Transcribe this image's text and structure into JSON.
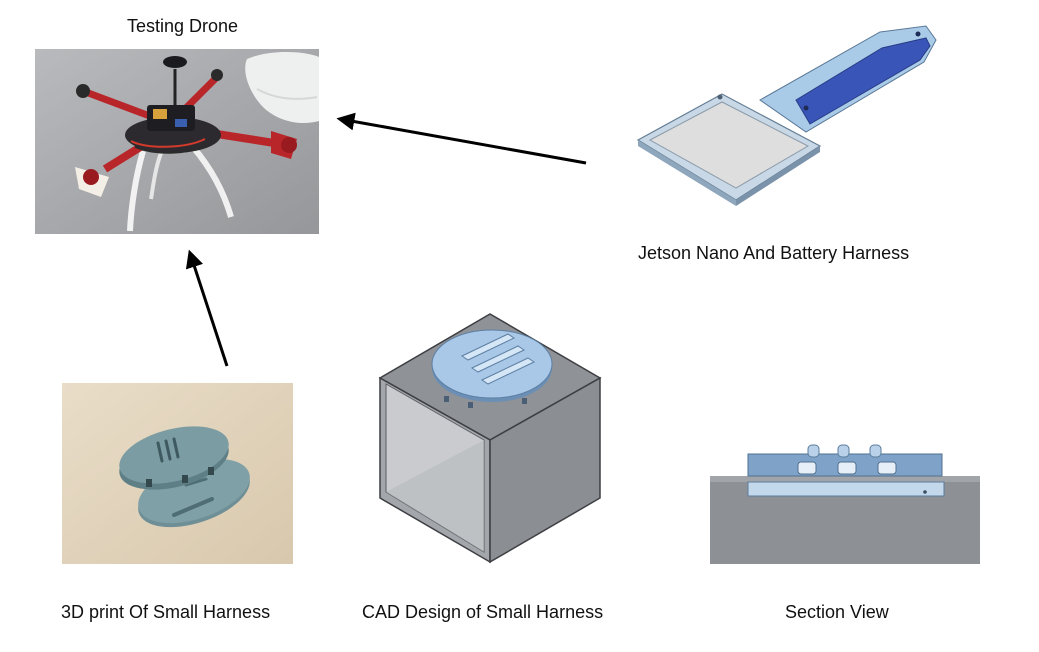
{
  "captions": {
    "testing_drone": "Testing Drone",
    "jetson_harness": "Jetson Nano And Battery Harness",
    "print_small_harness": "3D print Of Small Harness",
    "cad_small_harness": "CAD Design of Small Harness",
    "section_view": "Section View"
  }
}
